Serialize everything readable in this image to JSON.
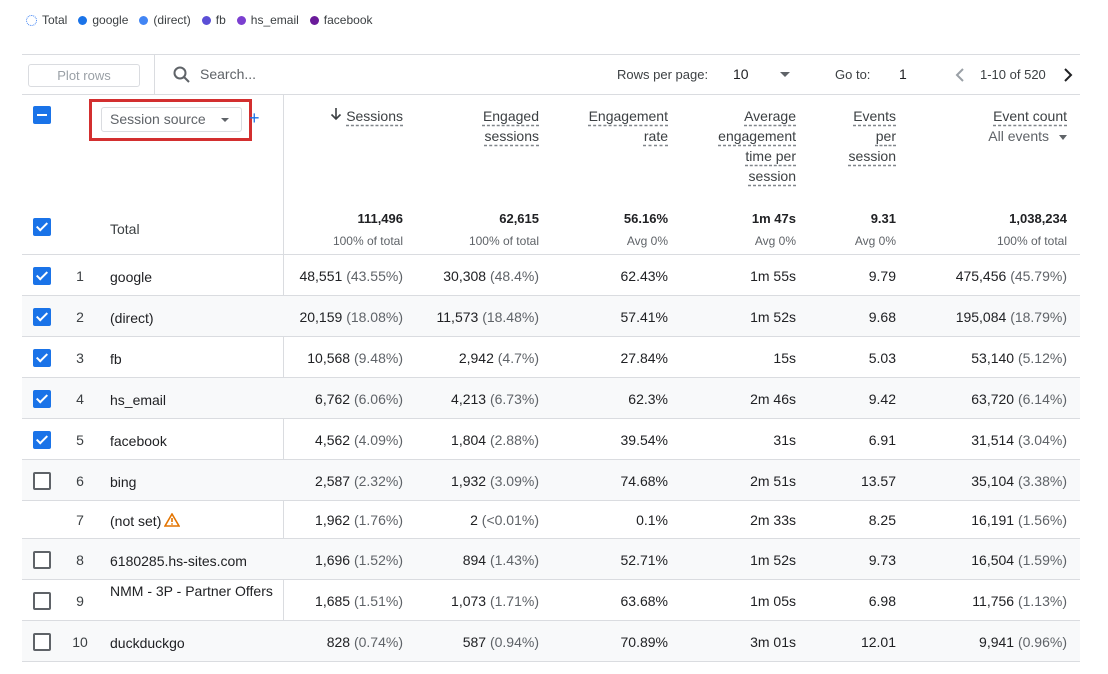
{
  "legend": [
    {
      "label": "Total",
      "color": "#4285f4",
      "style": "dotted"
    },
    {
      "label": "google",
      "color": "#1a73e8"
    },
    {
      "label": "(direct)",
      "color": "#4285f4"
    },
    {
      "label": "fb",
      "color": "#5b4fd6"
    },
    {
      "label": "hs_email",
      "color": "#7b3fd0"
    },
    {
      "label": "facebook",
      "color": "#6a1b9a"
    }
  ],
  "toolbar": {
    "plot_rows": "Plot rows",
    "search_placeholder": "Search...",
    "rows_per_page_label": "Rows per page:",
    "rows_per_page_value": "10",
    "go_to_label": "Go to:",
    "go_to_value": "1",
    "page_range": "1-10 of 520"
  },
  "header": {
    "dimension": "Session source",
    "add_dimension": "+",
    "columns": [
      {
        "id": "sessions",
        "lines": [
          "Sessions"
        ],
        "sorted": true
      },
      {
        "id": "engaged",
        "lines": [
          "Engaged",
          "sessions"
        ]
      },
      {
        "id": "engrate",
        "lines": [
          "Engagement",
          "rate"
        ]
      },
      {
        "id": "avgtime",
        "lines": [
          "Average",
          "engagement",
          "time per",
          "session"
        ]
      },
      {
        "id": "eps",
        "lines": [
          "Events",
          "per",
          "session"
        ]
      },
      {
        "id": "eventcount",
        "lines": [
          "Event count"
        ],
        "sub": "All events"
      }
    ]
  },
  "total": {
    "label": "Total",
    "values": [
      "111,496",
      "62,615",
      "56.16%",
      "1m 47s",
      "9.31",
      "1,038,234"
    ],
    "subs": [
      "100% of total",
      "100% of total",
      "Avg 0%",
      "Avg 0%",
      "Avg 0%",
      "100% of total"
    ]
  },
  "rows": [
    {
      "num": "1",
      "name": "google",
      "checked": true,
      "sessions": "48,551",
      "sessions_pct": "(43.55%)",
      "engaged": "30,308",
      "engaged_pct": "(48.4%)",
      "engrate": "62.43%",
      "avgtime": "1m 55s",
      "eps": "9.79",
      "events": "475,456",
      "events_pct": "(45.79%)"
    },
    {
      "num": "2",
      "name": "(direct)",
      "checked": true,
      "sessions": "20,159",
      "sessions_pct": "(18.08%)",
      "engaged": "11,573",
      "engaged_pct": "(18.48%)",
      "engrate": "57.41%",
      "avgtime": "1m 52s",
      "eps": "9.68",
      "events": "195,084",
      "events_pct": "(18.79%)"
    },
    {
      "num": "3",
      "name": "fb",
      "checked": true,
      "sessions": "10,568",
      "sessions_pct": "(9.48%)",
      "engaged": "2,942",
      "engaged_pct": "(4.7%)",
      "engrate": "27.84%",
      "avgtime": "15s",
      "eps": "5.03",
      "events": "53,140",
      "events_pct": "(5.12%)"
    },
    {
      "num": "4",
      "name": "hs_email",
      "checked": true,
      "sessions": "6,762",
      "sessions_pct": "(6.06%)",
      "engaged": "4,213",
      "engaged_pct": "(6.73%)",
      "engrate": "62.3%",
      "avgtime": "2m 46s",
      "eps": "9.42",
      "events": "63,720",
      "events_pct": "(6.14%)"
    },
    {
      "num": "5",
      "name": "facebook",
      "checked": true,
      "sessions": "4,562",
      "sessions_pct": "(4.09%)",
      "engaged": "1,804",
      "engaged_pct": "(2.88%)",
      "engrate": "39.54%",
      "avgtime": "31s",
      "eps": "6.91",
      "events": "31,514",
      "events_pct": "(3.04%)"
    },
    {
      "num": "6",
      "name": "bing",
      "checked": false,
      "sessions": "2,587",
      "sessions_pct": "(2.32%)",
      "engaged": "1,932",
      "engaged_pct": "(3.09%)",
      "engrate": "74.68%",
      "avgtime": "2m 51s",
      "eps": "13.57",
      "events": "35,104",
      "events_pct": "(3.38%)"
    },
    {
      "num": "7",
      "name": "(not set)",
      "checked": null,
      "warning": true,
      "sessions": "1,962",
      "sessions_pct": "(1.76%)",
      "engaged": "2",
      "engaged_pct": "(<0.01%)",
      "engrate": "0.1%",
      "avgtime": "2m 33s",
      "eps": "8.25",
      "events": "16,191",
      "events_pct": "(1.56%)"
    },
    {
      "num": "8",
      "name": "6180285.hs-sites.com",
      "checked": false,
      "sessions": "1,696",
      "sessions_pct": "(1.52%)",
      "engaged": "894",
      "engaged_pct": "(1.43%)",
      "engrate": "52.71%",
      "avgtime": "1m 52s",
      "eps": "9.73",
      "events": "16,504",
      "events_pct": "(1.59%)"
    },
    {
      "num": "9",
      "name": "NMM - 3P - Partner Offers",
      "checked": false,
      "sessions": "1,685",
      "sessions_pct": "(1.51%)",
      "engaged": "1,073",
      "engaged_pct": "(1.71%)",
      "engrate": "63.68%",
      "avgtime": "1m 05s",
      "eps": "6.98",
      "events": "11,756",
      "events_pct": "(1.13%)"
    },
    {
      "num": "10",
      "name": "duckduckgo",
      "checked": false,
      "sessions": "828",
      "sessions_pct": "(0.74%)",
      "engaged": "587",
      "engaged_pct": "(0.94%)",
      "engrate": "70.89%",
      "avgtime": "3m 01s",
      "eps": "12.01",
      "events": "9,941",
      "events_pct": "(0.96%)"
    }
  ],
  "colors": {
    "accent": "#1a73e8",
    "highlight": "#d32f2f",
    "warning": "#e37400"
  },
  "icons": [
    "search-icon",
    "chevron-left-icon",
    "chevron-right-icon",
    "sort-down-arrow-icon",
    "warning-icon"
  ]
}
